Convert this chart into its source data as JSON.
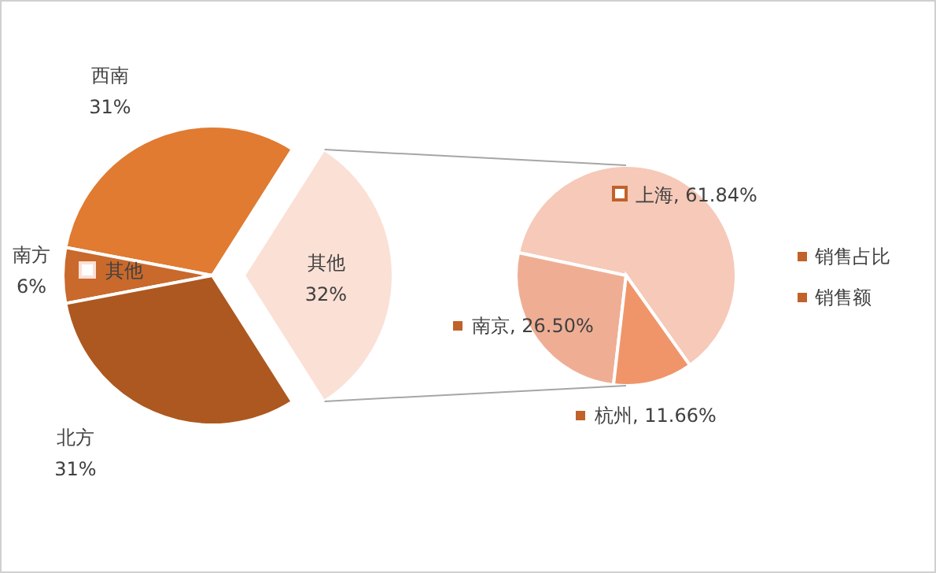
{
  "chart_data": [
    {
      "type": "pie",
      "categories": [
        "西南",
        "南方",
        "北方",
        "其他"
      ],
      "values": [
        31,
        6,
        31,
        32
      ],
      "colors": [
        "#e07b31",
        "#c9692c",
        "#ad5820",
        "#fbe0d6"
      ],
      "value_labels": [
        "31%",
        "6%",
        "31%",
        "32%"
      ],
      "annotations": [
        "其他"
      ]
    },
    {
      "type": "pie",
      "categories": [
        "上海",
        "南京",
        "杭州"
      ],
      "values": [
        61.84,
        26.5,
        11.66
      ],
      "colors": [
        "#f6c9b8",
        "#efae94",
        "#f0956a"
      ],
      "value_labels": [
        "61.84%",
        "26.50%",
        "11.66%"
      ],
      "annotations": [
        "销售占比",
        "销售额"
      ]
    }
  ]
}
